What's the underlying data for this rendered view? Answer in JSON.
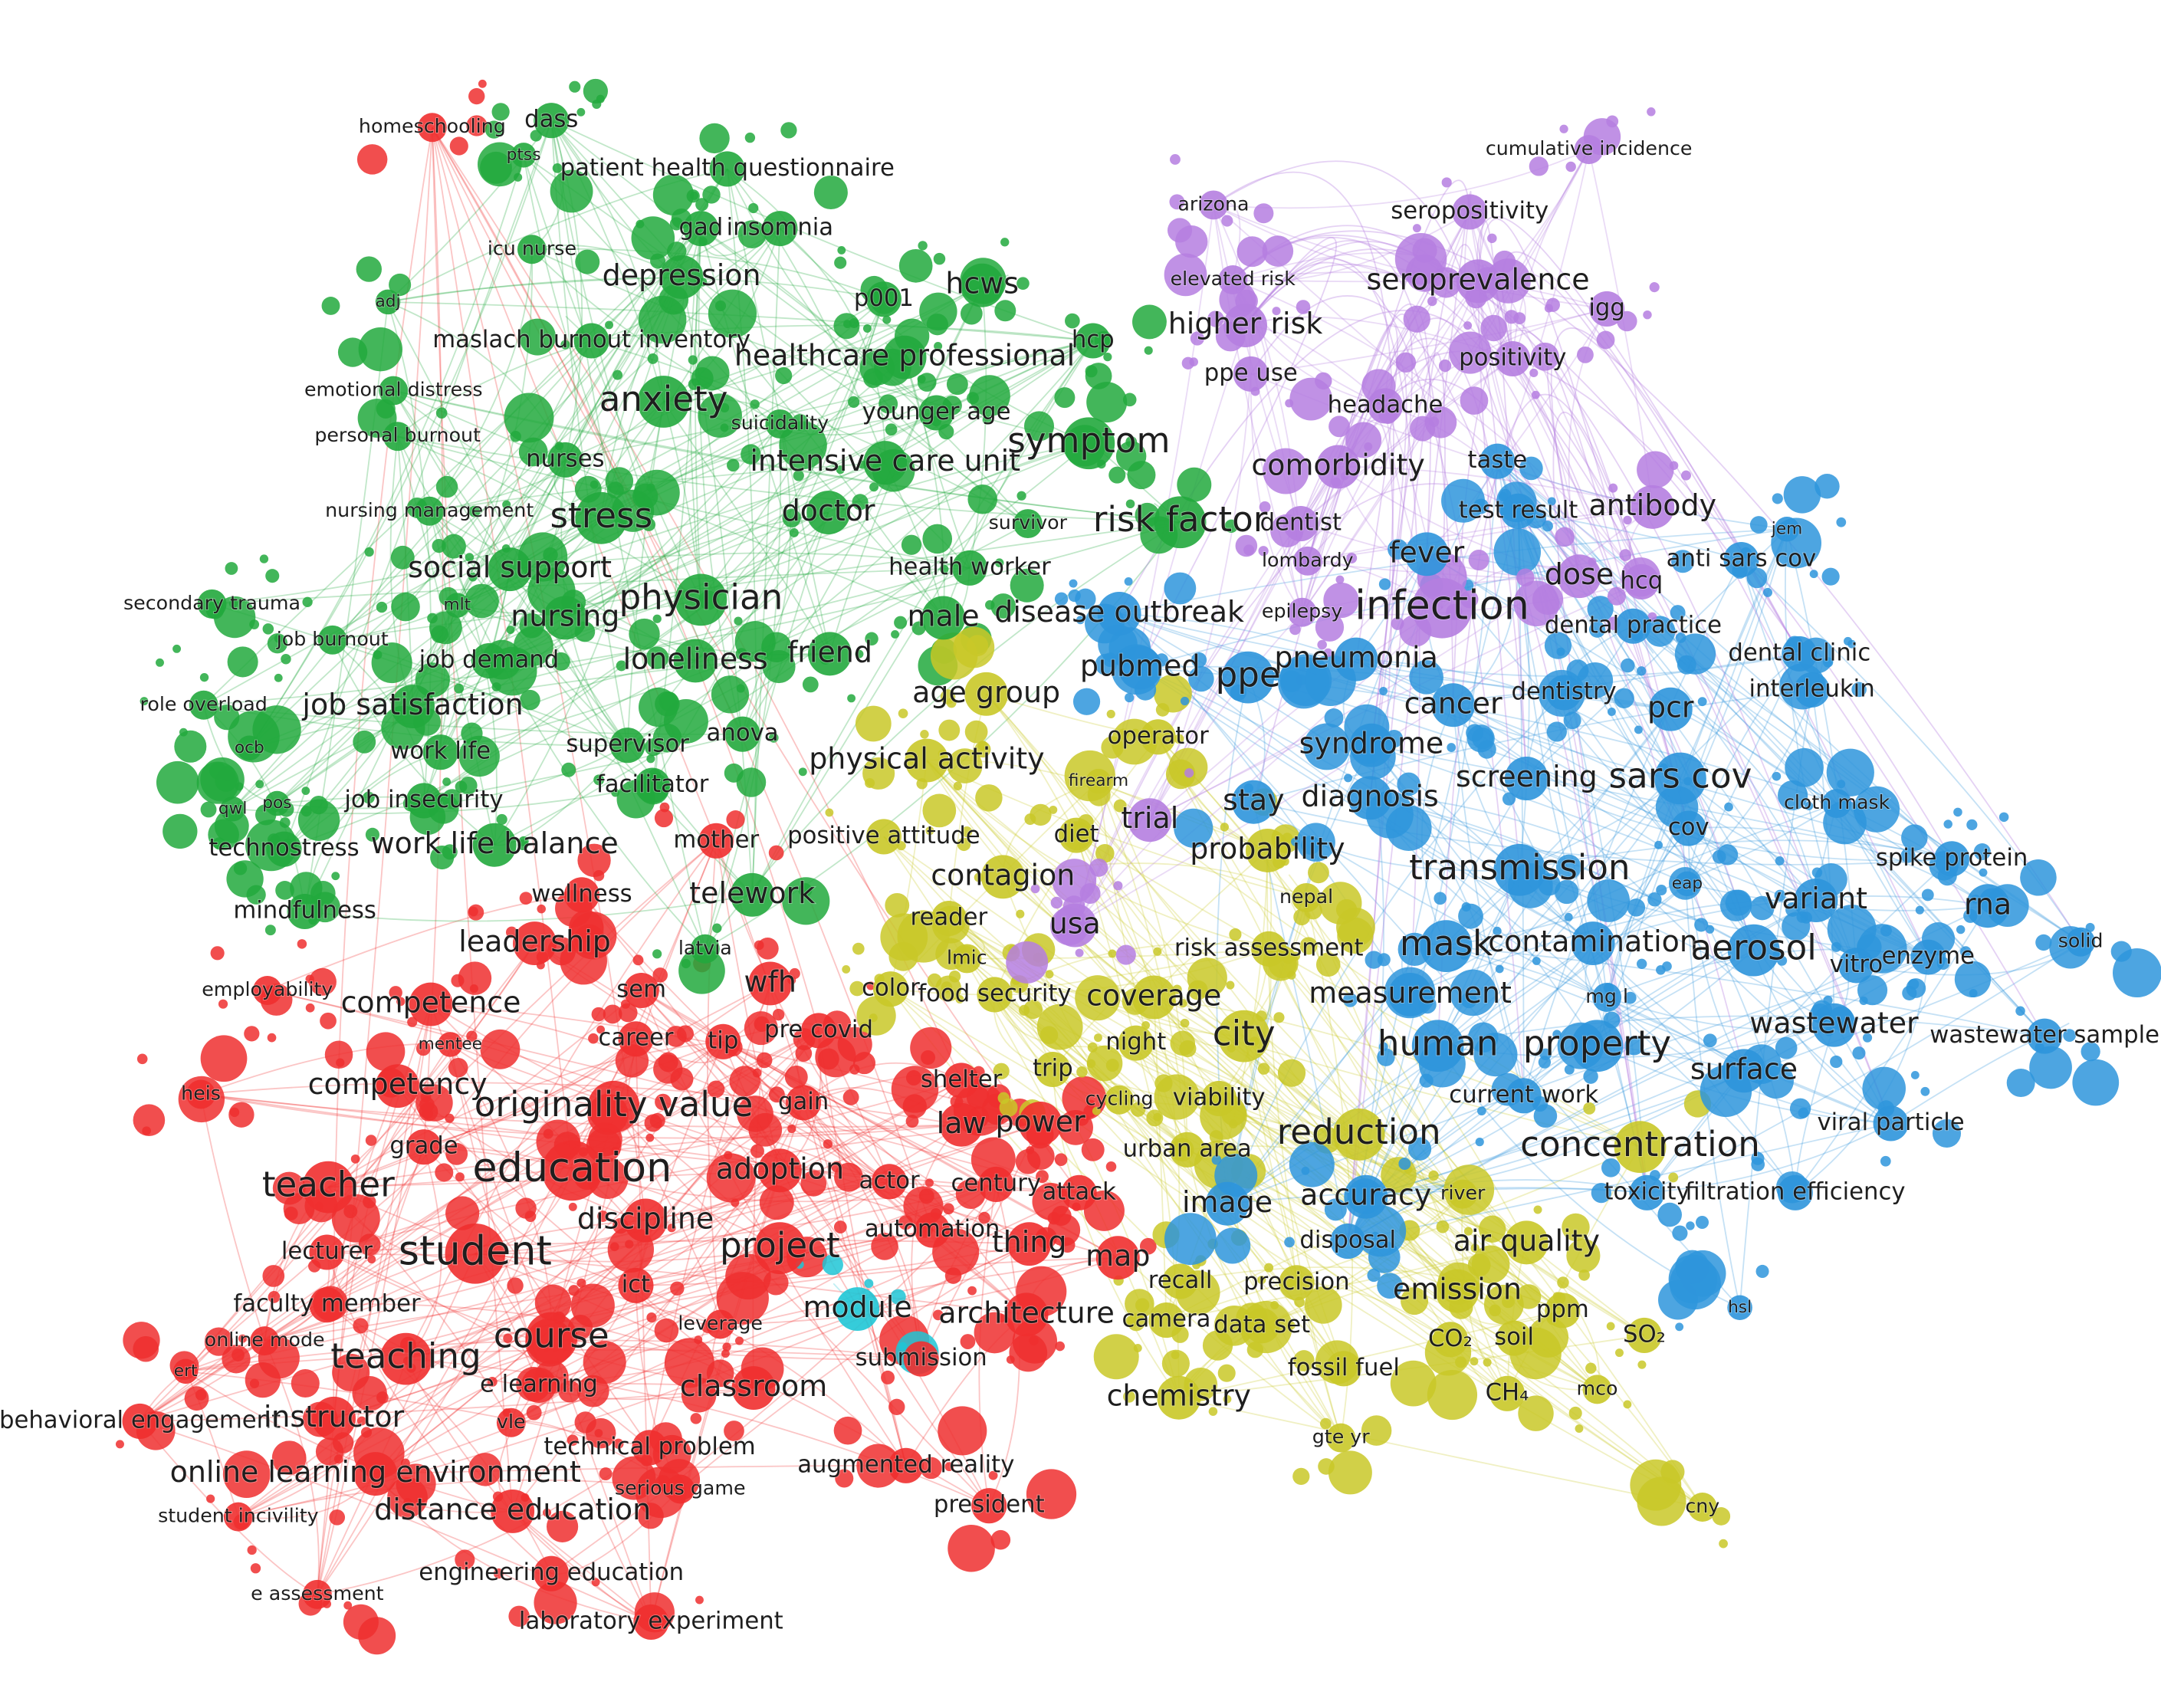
{
  "nodes": [
    {
      "label": "homeschooling"
    },
    {
      "label": "dass"
    },
    {
      "label": "ptss"
    },
    {
      "label": "patient health questionnaire"
    },
    {
      "label": "gad"
    },
    {
      "label": "insomnia"
    },
    {
      "label": "icu nurse"
    },
    {
      "label": "depression"
    },
    {
      "label": "p001"
    },
    {
      "label": "hcws"
    },
    {
      "label": "adj"
    },
    {
      "label": "maslach burnout inventory"
    },
    {
      "label": "healthcare professional"
    },
    {
      "label": "hcp"
    },
    {
      "label": "emotional distress"
    },
    {
      "label": "anxiety"
    },
    {
      "label": "suicidality"
    },
    {
      "label": "younger age"
    },
    {
      "label": "personal burnout"
    },
    {
      "label": "nurses"
    },
    {
      "label": "intensive care unit"
    },
    {
      "label": "symptom"
    },
    {
      "label": "nursing management"
    },
    {
      "label": "stress"
    },
    {
      "label": "doctor"
    },
    {
      "label": "survivor"
    },
    {
      "label": "social support"
    },
    {
      "label": "health worker"
    },
    {
      "label": "mlt"
    },
    {
      "label": "secondary trauma"
    },
    {
      "label": "physician"
    },
    {
      "label": "nursing"
    },
    {
      "label": "male"
    },
    {
      "label": "job burnout"
    },
    {
      "label": "job demand"
    },
    {
      "label": "loneliness"
    },
    {
      "label": "friend"
    },
    {
      "label": "role overload"
    },
    {
      "label": "job satisfaction"
    },
    {
      "label": "supervisor"
    },
    {
      "label": "anova"
    },
    {
      "label": "ocb"
    },
    {
      "label": "work life"
    },
    {
      "label": "job insecurity"
    },
    {
      "label": "facilitator"
    },
    {
      "label": "qwl"
    },
    {
      "label": "pos"
    },
    {
      "label": "technostress"
    },
    {
      "label": "work life balance"
    },
    {
      "label": "mother"
    },
    {
      "label": "telework"
    },
    {
      "label": "mindfulness"
    },
    {
      "label": "latvia"
    },
    {
      "label": "wellness"
    },
    {
      "label": "leadership"
    },
    {
      "label": "employability"
    },
    {
      "label": "competence"
    },
    {
      "label": "sem"
    },
    {
      "label": "wfh"
    },
    {
      "label": "mentee"
    },
    {
      "label": "career"
    },
    {
      "label": "tip"
    },
    {
      "label": "pre covid"
    },
    {
      "label": "heis"
    },
    {
      "label": "competency"
    },
    {
      "label": "originality value"
    },
    {
      "label": "gain"
    },
    {
      "label": "grade"
    },
    {
      "label": "teacher"
    },
    {
      "label": "education"
    },
    {
      "label": "adoption"
    },
    {
      "label": "actor"
    },
    {
      "label": "discipline"
    },
    {
      "label": "lecturer"
    },
    {
      "label": "student"
    },
    {
      "label": "project"
    },
    {
      "label": "automation"
    },
    {
      "label": "ict"
    },
    {
      "label": "faculty member"
    },
    {
      "label": "leverage"
    },
    {
      "label": "module"
    },
    {
      "label": "online mode"
    },
    {
      "label": "course"
    },
    {
      "label": "teaching"
    },
    {
      "label": "ert"
    },
    {
      "label": "e learning"
    },
    {
      "label": "classroom"
    },
    {
      "label": "submission"
    },
    {
      "label": "behavioral engagement"
    },
    {
      "label": "instructor"
    },
    {
      "label": "vle"
    },
    {
      "label": "technical problem"
    },
    {
      "label": "online learning environment"
    },
    {
      "label": "serious game"
    },
    {
      "label": "augmented reality"
    },
    {
      "label": "student incivility"
    },
    {
      "label": "distance education"
    },
    {
      "label": "president"
    },
    {
      "label": "engineering education"
    },
    {
      "label": "e assessment"
    },
    {
      "label": "laboratory experiment"
    },
    {
      "label": "thing"
    },
    {
      "label": "architecture"
    },
    {
      "label": "map"
    },
    {
      "label": "power"
    },
    {
      "label": "law"
    },
    {
      "label": "century"
    },
    {
      "label": "attack"
    },
    {
      "label": "shelter"
    },
    {
      "label": "physical activity"
    },
    {
      "label": "positive attitude"
    },
    {
      "label": "contagion"
    },
    {
      "label": "reader"
    },
    {
      "label": "lmic"
    },
    {
      "label": "diet"
    },
    {
      "label": "operator"
    },
    {
      "label": "firearm"
    },
    {
      "label": "color"
    },
    {
      "label": "food security"
    },
    {
      "label": "coverage"
    },
    {
      "label": "trip"
    },
    {
      "label": "night"
    },
    {
      "label": "cycling"
    },
    {
      "label": "viability"
    },
    {
      "label": "urban area"
    },
    {
      "label": "city"
    },
    {
      "label": "reduction"
    },
    {
      "label": "image"
    },
    {
      "label": "accuracy"
    },
    {
      "label": "river"
    },
    {
      "label": "recall"
    },
    {
      "label": "precision"
    },
    {
      "label": "camera"
    },
    {
      "label": "data set"
    },
    {
      "label": "disposal"
    },
    {
      "label": "air quality"
    },
    {
      "label": "emission"
    },
    {
      "label": "CO₂"
    },
    {
      "label": "soil"
    },
    {
      "label": "ppm"
    },
    {
      "label": "SO₂"
    },
    {
      "label": "fossil fuel"
    },
    {
      "label": "chemistry"
    },
    {
      "label": "CH₄"
    },
    {
      "label": "mco"
    },
    {
      "label": "gte yr"
    },
    {
      "label": "cny"
    },
    {
      "label": "probability"
    },
    {
      "label": "nepal"
    },
    {
      "label": "risk assessment"
    },
    {
      "label": "concentration"
    },
    {
      "label": "current work"
    },
    {
      "label": "arizona"
    },
    {
      "label": "cumulative incidence"
    },
    {
      "label": "seropositivity"
    },
    {
      "label": "elevated risk"
    },
    {
      "label": "seroprevalence"
    },
    {
      "label": "igg"
    },
    {
      "label": "higher risk"
    },
    {
      "label": "positivity"
    },
    {
      "label": "ppe use"
    },
    {
      "label": "headache"
    },
    {
      "label": "comorbidity"
    },
    {
      "label": "risk factor"
    },
    {
      "label": "dentist"
    },
    {
      "label": "lombardy"
    },
    {
      "label": "epilepsy"
    },
    {
      "label": "usa"
    },
    {
      "label": "trial"
    },
    {
      "label": "age group"
    },
    {
      "label": "antibody"
    },
    {
      "label": "dose"
    },
    {
      "label": "hcq"
    },
    {
      "label": "taste"
    },
    {
      "label": "test result"
    },
    {
      "label": "jem"
    },
    {
      "label": "anti sars cov"
    },
    {
      "label": "fever"
    },
    {
      "label": "infection"
    },
    {
      "label": "disease outbreak"
    },
    {
      "label": "dental practice"
    },
    {
      "label": "pneumonia"
    },
    {
      "label": "pubmed"
    },
    {
      "label": "ppe"
    },
    {
      "label": "dental clinic"
    },
    {
      "label": "interleukin"
    },
    {
      "label": "cancer"
    },
    {
      "label": "dentistry"
    },
    {
      "label": "pcr"
    },
    {
      "label": "syndrome"
    },
    {
      "label": "screening"
    },
    {
      "label": "sars cov"
    },
    {
      "label": "diagnosis"
    },
    {
      "label": "stay"
    },
    {
      "label": "cloth mask"
    },
    {
      "label": "cov"
    },
    {
      "label": "spike protein"
    },
    {
      "label": "transmission"
    },
    {
      "label": "eap"
    },
    {
      "label": "variant"
    },
    {
      "label": "rna"
    },
    {
      "label": "mask"
    },
    {
      "label": "contamination"
    },
    {
      "label": "aerosol"
    },
    {
      "label": "solid"
    },
    {
      "label": "enzyme"
    },
    {
      "label": "vitro"
    },
    {
      "label": "measurement"
    },
    {
      "label": "mg l"
    },
    {
      "label": "wastewater"
    },
    {
      "label": "wastewater sample"
    },
    {
      "label": "human"
    },
    {
      "label": "property"
    },
    {
      "label": "surface"
    },
    {
      "label": "viral particle"
    },
    {
      "label": "toxicity"
    },
    {
      "label": "filtration efficiency"
    },
    {
      "label": "hsl"
    }
  ]
}
